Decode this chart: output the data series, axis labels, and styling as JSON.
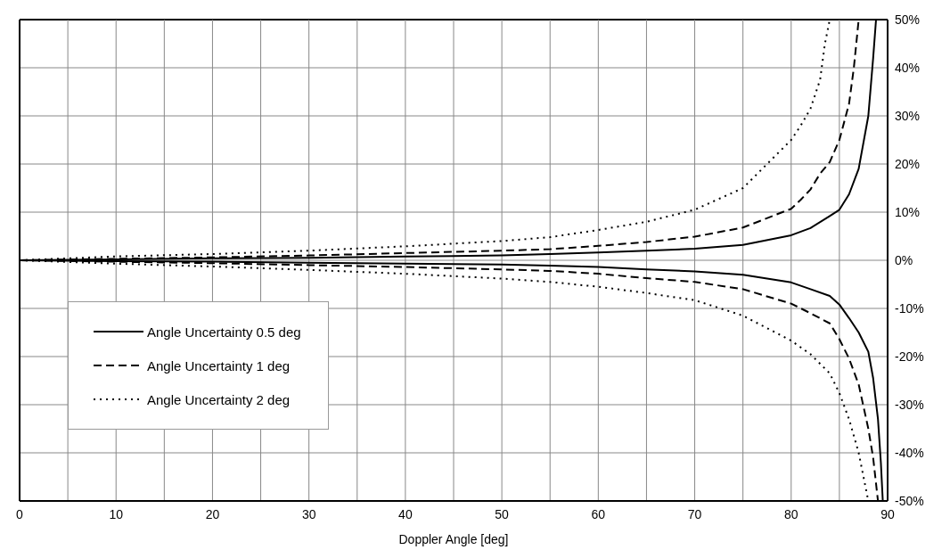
{
  "chart_data": {
    "type": "line",
    "xlabel": "Doppler Angle [deg]",
    "xlim": [
      0,
      90
    ],
    "xticks": [
      0,
      {
        "value": 5,
        "label": null
      },
      10,
      {
        "value": 15,
        "label": null
      },
      20,
      {
        "value": 25,
        "label": null
      },
      30,
      {
        "value": 35,
        "label": null
      },
      40,
      {
        "value": 45,
        "label": null
      },
      50,
      {
        "value": 55,
        "label": null
      },
      60,
      {
        "value": 65,
        "label": null
      },
      70,
      {
        "value": 75,
        "label": null
      },
      80,
      {
        "value": 85,
        "label": null
      },
      90
    ],
    "ylim": [
      -50,
      50
    ],
    "yticks": [
      {
        "value": -50,
        "label": "-50%"
      },
      {
        "value": -40,
        "label": "-40%"
      },
      {
        "value": -30,
        "label": "-30%"
      },
      {
        "value": -20,
        "label": "-20%"
      },
      {
        "value": -10,
        "label": "-10%"
      },
      {
        "value": 0,
        "label": "0%"
      },
      {
        "value": 10,
        "label": "10%"
      },
      {
        "value": 20,
        "label": "20%"
      },
      {
        "value": 30,
        "label": "30%"
      },
      {
        "value": 40,
        "label": "40%"
      },
      {
        "value": 50,
        "label": "50%"
      }
    ],
    "grid": true,
    "legend": "bottom left",
    "marker": "none",
    "series": [
      {
        "name": "Angle Uncertainty 0.5 deg",
        "color": "#000000",
        "line_style": "solid",
        "x": [
          0,
          10,
          20,
          30,
          40,
          50,
          55,
          60,
          65,
          70,
          75,
          80,
          82,
          84,
          85,
          86,
          87,
          88,
          88.5,
          88.8
        ],
        "values": [
          0,
          0.2,
          0.4,
          0.5,
          0.8,
          1.0,
          1.3,
          1.6,
          2.0,
          2.4,
          3.2,
          5.2,
          6.7,
          9.2,
          10.5,
          13.7,
          19,
          30,
          42,
          50
        ]
      },
      {
        "name": "Angle Uncertainty 1 deg",
        "color": "#000000",
        "line_style": "dashed",
        "x": [
          0,
          10,
          20,
          30,
          40,
          50,
          55,
          60,
          65,
          70,
          75,
          80,
          81,
          82,
          83,
          84,
          85,
          86,
          86.5,
          87
        ],
        "values": [
          0,
          0.3,
          0.6,
          1.0,
          1.5,
          2.0,
          2.3,
          3.0,
          3.8,
          4.9,
          6.8,
          10.7,
          12.6,
          14.7,
          18,
          20.4,
          25,
          32.5,
          40,
          50
        ]
      },
      {
        "name": "Angle Uncertainty 2 deg",
        "color": "#000000",
        "line_style": "dotted",
        "x": [
          0,
          10,
          20,
          30,
          40,
          50,
          55,
          60,
          65,
          70,
          75,
          80,
          81,
          82,
          83,
          83.5,
          84
        ],
        "values": [
          0,
          0.8,
          1.3,
          2.0,
          2.9,
          4.0,
          4.8,
          6.3,
          8,
          10.5,
          15,
          25,
          28,
          31.5,
          37.5,
          45,
          50
        ]
      },
      {
        "color": "#000000",
        "line_style": "solid",
        "x": [
          0,
          10,
          20,
          30,
          40,
          50,
          55,
          60,
          65,
          70,
          75,
          80,
          82,
          84,
          85,
          86,
          87,
          88,
          88.5,
          89,
          89.3,
          89.5
        ],
        "values": [
          0,
          -0.2,
          -0.3,
          -0.5,
          -0.7,
          -0.9,
          -1.1,
          -1.4,
          -1.9,
          -2.3,
          -3.0,
          -4.6,
          -6,
          -7.4,
          -9.2,
          -12,
          -15,
          -19,
          -24.5,
          -33,
          -42,
          -50
        ]
      },
      {
        "color": "#000000",
        "line_style": "dashed",
        "x": [
          0,
          10,
          20,
          30,
          40,
          50,
          55,
          60,
          65,
          70,
          75,
          80,
          82,
          84,
          85,
          86,
          87,
          88,
          88.5,
          89
        ],
        "values": [
          0,
          -0.3,
          -0.6,
          -1.0,
          -1.4,
          -1.9,
          -2.2,
          -2.8,
          -3.7,
          -4.5,
          -6,
          -9,
          -11,
          -13.1,
          -16.4,
          -20.4,
          -25.8,
          -35,
          -41,
          -50
        ]
      },
      {
        "color": "#000000",
        "line_style": "dotted",
        "x": [
          0,
          10,
          20,
          30,
          40,
          50,
          55,
          60,
          65,
          70,
          75,
          80,
          82,
          84,
          85,
          86,
          87,
          88
        ],
        "values": [
          0,
          -0.7,
          -1.3,
          -2.0,
          -2.8,
          -3.8,
          -4.5,
          -5.5,
          -6.8,
          -8.3,
          -11.5,
          -16.7,
          -19.5,
          -23.5,
          -27.6,
          -33,
          -40,
          -50
        ]
      }
    ]
  }
}
